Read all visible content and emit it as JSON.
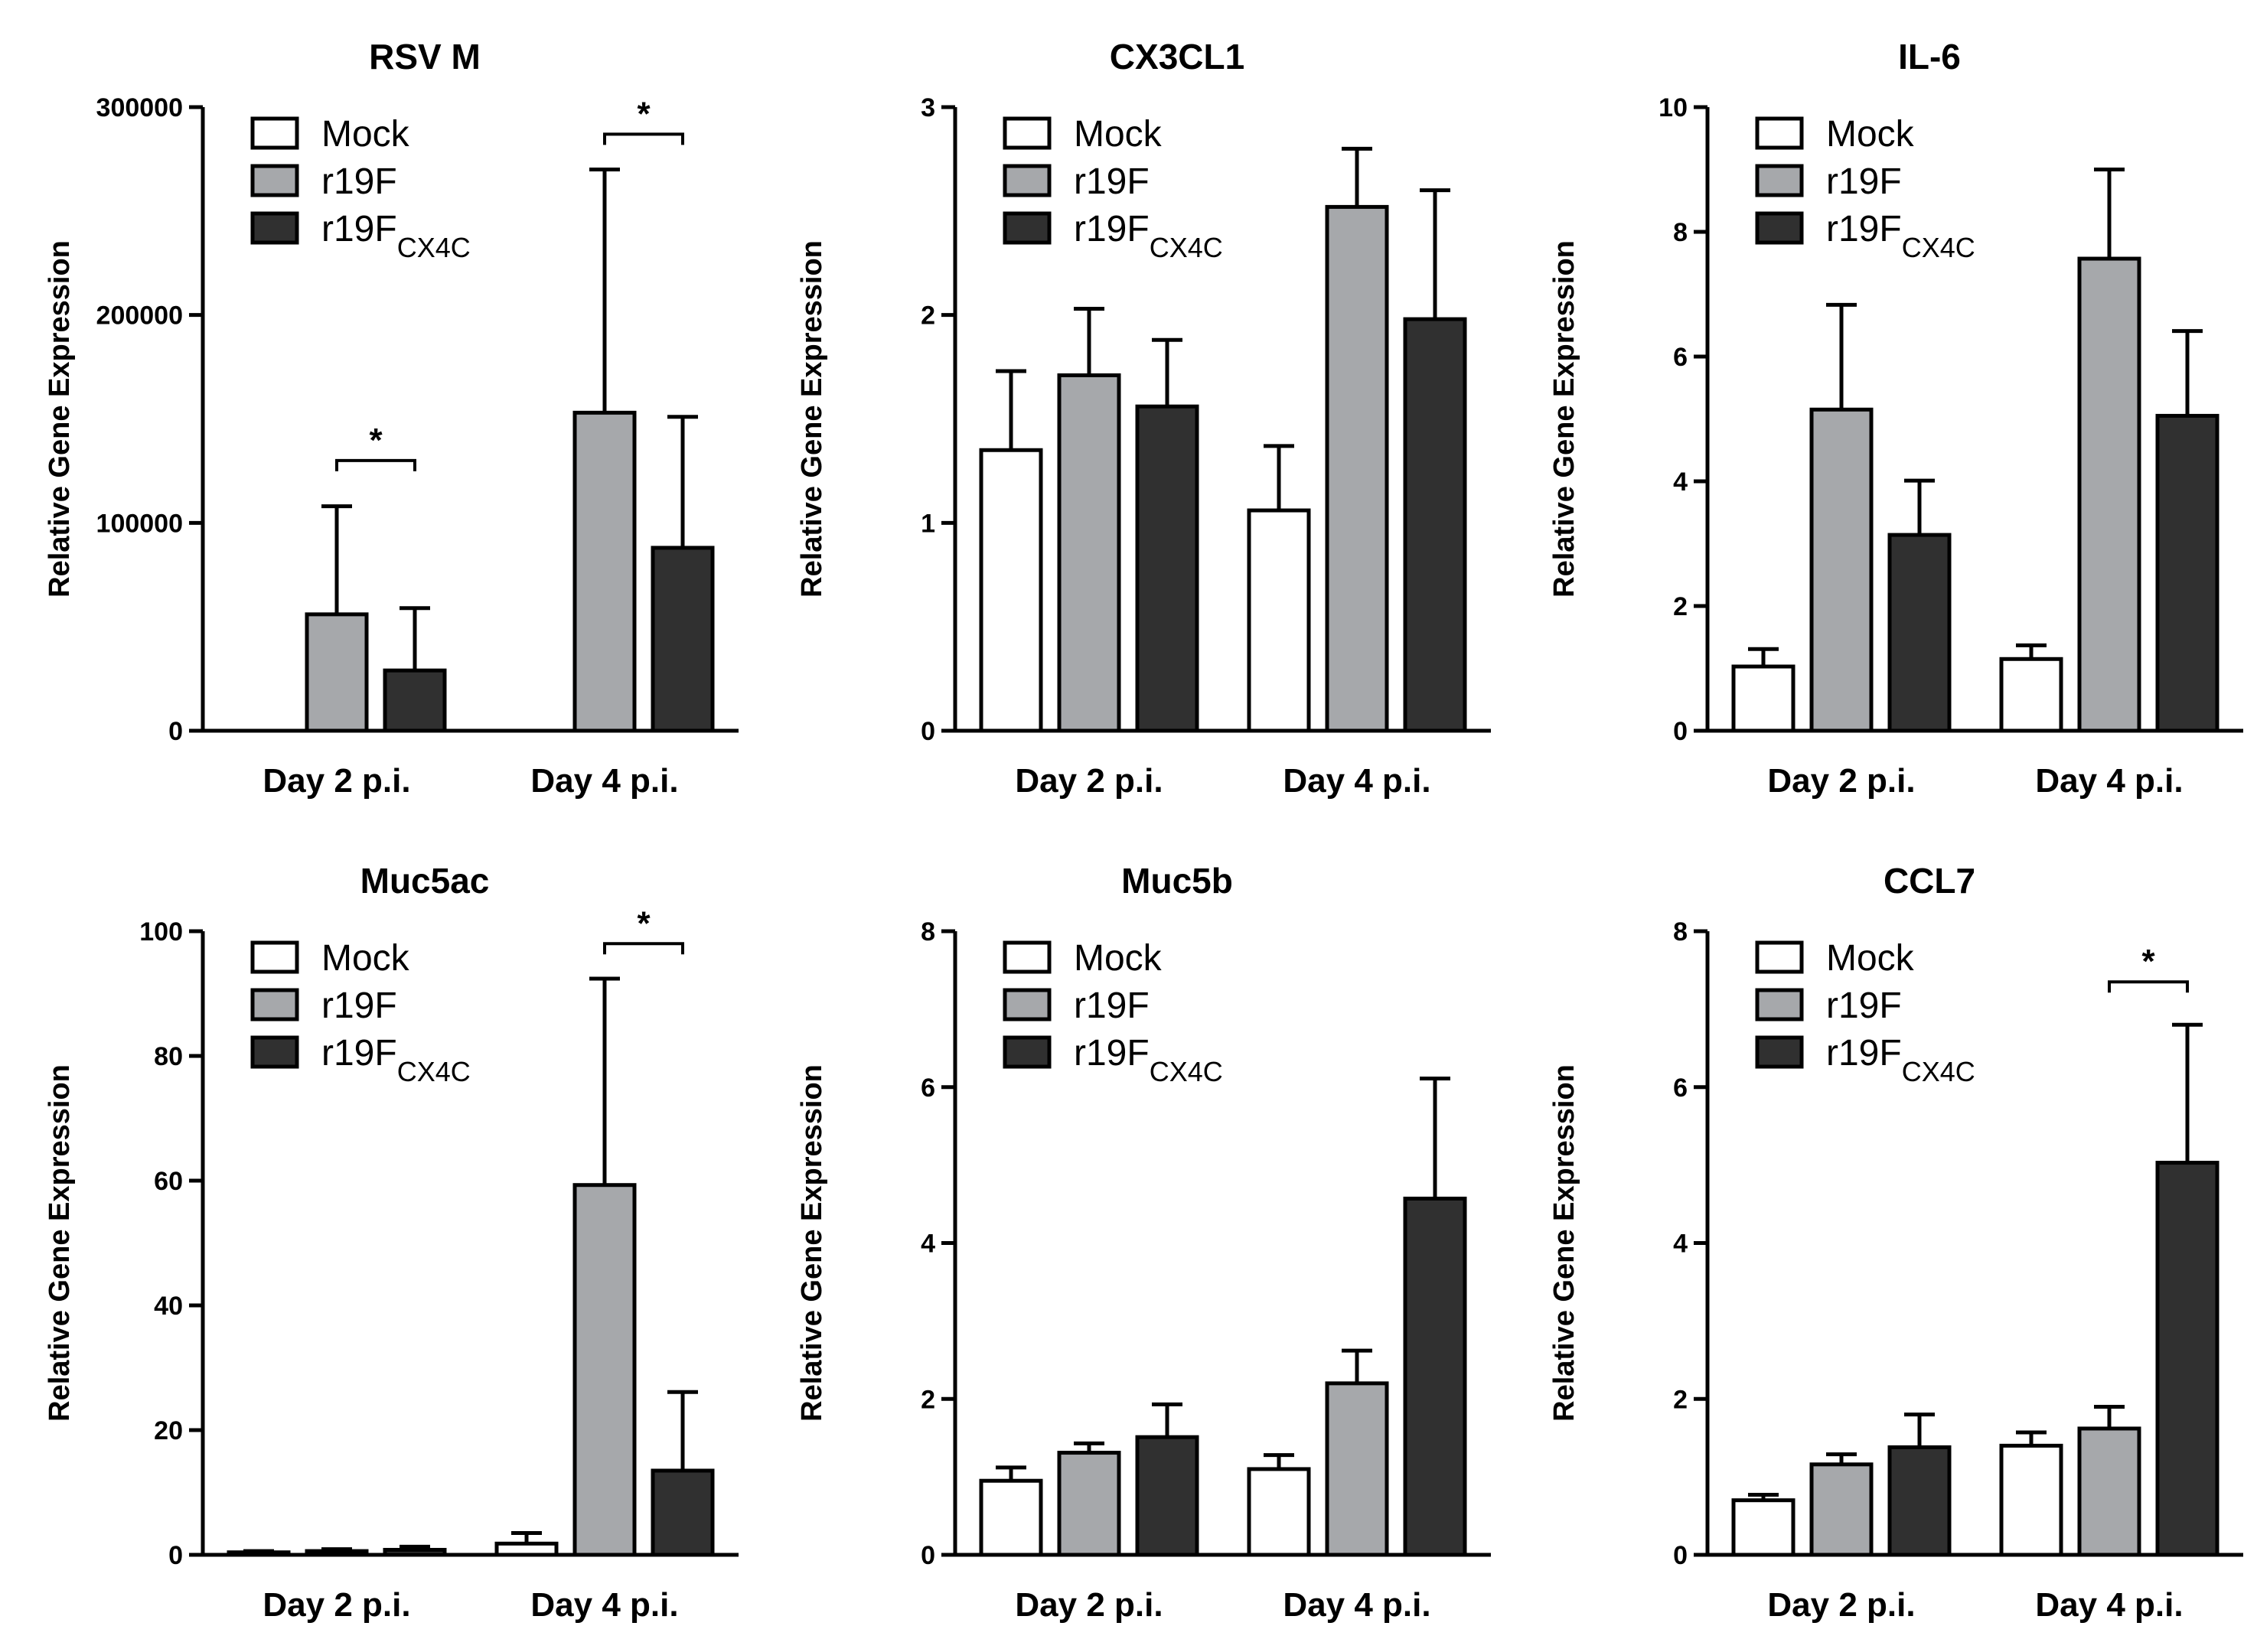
{
  "figure_title": "",
  "legend": {
    "labels": [
      "Mock",
      "r19F",
      "r19F"
    ],
    "subscripts": [
      "",
      "",
      "CX4C"
    ]
  },
  "colors": {
    "mock": "#ffffff",
    "r19f": "#a6a8ab",
    "r19f_cx4c": "#303030",
    "axis": "#000000"
  },
  "chart_data": [
    {
      "type": "bar",
      "title": "RSV M",
      "categories": [
        "Day 2 p.i.",
        "Day 4 p.i."
      ],
      "ylabel": "Relative Gene Expression",
      "ylim": [
        0,
        300000
      ],
      "yticks": [
        0,
        100000,
        200000,
        300000
      ],
      "series": [
        {
          "name": "Mock",
          "values": [
            0,
            0
          ],
          "errors": [
            0,
            0
          ]
        },
        {
          "name": "r19F",
          "values": [
            56000,
            153000
          ],
          "errors": [
            52000,
            117000
          ]
        },
        {
          "name": "r19FCX4C",
          "values": [
            29000,
            88000
          ],
          "errors": [
            30000,
            63000
          ]
        }
      ],
      "annotations": [
        {
          "text": "*",
          "category": "Day 2 p.i.",
          "from_series": 1,
          "to_series": 2,
          "at_value": 130000
        },
        {
          "text": "*",
          "category": "Day 4 p.i.",
          "from_series": 1,
          "to_series": 2,
          "at_value": 287000
        }
      ],
      "legend_position": "top-left"
    },
    {
      "type": "bar",
      "title": "CX3CL1",
      "categories": [
        "Day 2 p.i.",
        "Day 4 p.i."
      ],
      "ylabel": "Relative Gene Expression",
      "ylim": [
        0,
        3
      ],
      "yticks": [
        0,
        1,
        2,
        3
      ],
      "series": [
        {
          "name": "Mock",
          "values": [
            1.35,
            1.06
          ],
          "errors": [
            0.38,
            0.31
          ]
        },
        {
          "name": "r19F",
          "values": [
            1.71,
            2.52
          ],
          "errors": [
            0.32,
            0.28
          ]
        },
        {
          "name": "r19FCX4C",
          "values": [
            1.56,
            1.98
          ],
          "errors": [
            0.32,
            0.62
          ]
        }
      ],
      "annotations": [],
      "legend_position": "top-left"
    },
    {
      "type": "bar",
      "title": "IL-6",
      "categories": [
        "Day 2 p.i.",
        "Day 4 p.i."
      ],
      "ylabel": "Relative Gene Expression",
      "ylim": [
        0,
        10
      ],
      "yticks": [
        0,
        2,
        4,
        6,
        8,
        10
      ],
      "series": [
        {
          "name": "Mock",
          "values": [
            1.03,
            1.15
          ],
          "errors": [
            0.28,
            0.22
          ]
        },
        {
          "name": "r19F",
          "values": [
            5.15,
            7.57
          ],
          "errors": [
            1.68,
            1.43
          ]
        },
        {
          "name": "r19FCX4C",
          "values": [
            3.14,
            5.05
          ],
          "errors": [
            0.87,
            1.36
          ]
        }
      ],
      "annotations": [],
      "legend_position": "top-left"
    },
    {
      "type": "bar",
      "title": "Muc5ac",
      "categories": [
        "Day 2 p.i.",
        "Day 4 p.i."
      ],
      "ylabel": "Relative Gene Expression",
      "ylim": [
        0,
        100
      ],
      "yticks": [
        0,
        20,
        40,
        60,
        80,
        100
      ],
      "series": [
        {
          "name": "Mock",
          "values": [
            0.4,
            1.8
          ],
          "errors": [
            0.2,
            1.7
          ]
        },
        {
          "name": "r19F",
          "values": [
            0.6,
            59.3
          ],
          "errors": [
            0.3,
            33.1
          ]
        },
        {
          "name": "r19FCX4C",
          "values": [
            0.8,
            13.5
          ],
          "errors": [
            0.5,
            12.6
          ]
        }
      ],
      "annotations": [
        {
          "text": "*",
          "category": "Day 4 p.i.",
          "from_series": 1,
          "to_series": 2,
          "at_value": 98
        }
      ],
      "legend_position": "top-left"
    },
    {
      "type": "bar",
      "title": "Muc5b",
      "categories": [
        "Day 2 p.i.",
        "Day 4 p.i."
      ],
      "ylabel": "Relative Gene Expression",
      "ylim": [
        0,
        8
      ],
      "yticks": [
        0,
        2,
        4,
        6,
        8
      ],
      "series": [
        {
          "name": "Mock",
          "values": [
            0.95,
            1.1
          ],
          "errors": [
            0.17,
            0.18
          ]
        },
        {
          "name": "r19F",
          "values": [
            1.31,
            2.2
          ],
          "errors": [
            0.12,
            0.42
          ]
        },
        {
          "name": "r19FCX4C",
          "values": [
            1.51,
            4.57
          ],
          "errors": [
            0.42,
            1.54
          ]
        }
      ],
      "annotations": [],
      "legend_position": "top-left"
    },
    {
      "type": "bar",
      "title": "CCL7",
      "categories": [
        "Day 2 p.i.",
        "Day 4 p.i."
      ],
      "ylabel": "Relative Gene Expression",
      "ylim": [
        0,
        8
      ],
      "yticks": [
        0,
        2,
        4,
        6,
        8
      ],
      "series": [
        {
          "name": "Mock",
          "values": [
            0.7,
            1.4
          ],
          "errors": [
            0.07,
            0.17
          ]
        },
        {
          "name": "r19F",
          "values": [
            1.16,
            1.62
          ],
          "errors": [
            0.13,
            0.28
          ]
        },
        {
          "name": "r19FCX4C",
          "values": [
            1.38,
            5.03
          ],
          "errors": [
            0.42,
            1.77
          ]
        }
      ],
      "annotations": [
        {
          "text": "*",
          "category": "Day 4 p.i.",
          "from_series": 1,
          "to_series": 2,
          "at_value": 7.35
        }
      ],
      "legend_position": "top-left"
    }
  ]
}
